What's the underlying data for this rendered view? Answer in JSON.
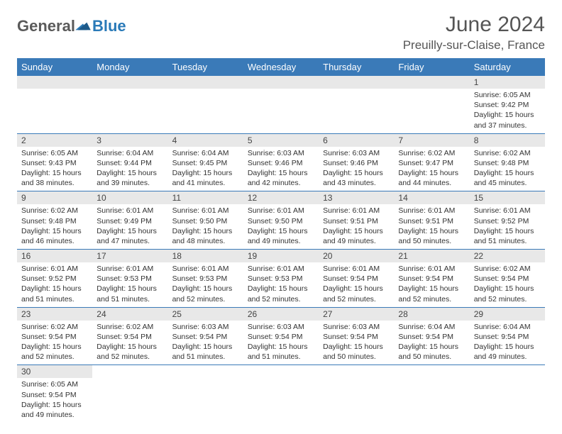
{
  "logo": {
    "part1": "General",
    "part2": "Blue"
  },
  "title": "June 2024",
  "location": "Preuilly-sur-Claise, France",
  "colors": {
    "header_bg": "#3a7ab8",
    "header_text": "#ffffff",
    "daynum_bg": "#e8e8e8",
    "border": "#3a7ab8",
    "logo_gray": "#5a5a5a",
    "logo_blue": "#2a7ab8"
  },
  "weekdays": [
    "Sunday",
    "Monday",
    "Tuesday",
    "Wednesday",
    "Thursday",
    "Friday",
    "Saturday"
  ],
  "weeks": [
    [
      null,
      null,
      null,
      null,
      null,
      null,
      {
        "d": "1",
        "sr": "Sunrise: 6:05 AM",
        "ss": "Sunset: 9:42 PM",
        "dl1": "Daylight: 15 hours",
        "dl2": "and 37 minutes."
      }
    ],
    [
      {
        "d": "2",
        "sr": "Sunrise: 6:05 AM",
        "ss": "Sunset: 9:43 PM",
        "dl1": "Daylight: 15 hours",
        "dl2": "and 38 minutes."
      },
      {
        "d": "3",
        "sr": "Sunrise: 6:04 AM",
        "ss": "Sunset: 9:44 PM",
        "dl1": "Daylight: 15 hours",
        "dl2": "and 39 minutes."
      },
      {
        "d": "4",
        "sr": "Sunrise: 6:04 AM",
        "ss": "Sunset: 9:45 PM",
        "dl1": "Daylight: 15 hours",
        "dl2": "and 41 minutes."
      },
      {
        "d": "5",
        "sr": "Sunrise: 6:03 AM",
        "ss": "Sunset: 9:46 PM",
        "dl1": "Daylight: 15 hours",
        "dl2": "and 42 minutes."
      },
      {
        "d": "6",
        "sr": "Sunrise: 6:03 AM",
        "ss": "Sunset: 9:46 PM",
        "dl1": "Daylight: 15 hours",
        "dl2": "and 43 minutes."
      },
      {
        "d": "7",
        "sr": "Sunrise: 6:02 AM",
        "ss": "Sunset: 9:47 PM",
        "dl1": "Daylight: 15 hours",
        "dl2": "and 44 minutes."
      },
      {
        "d": "8",
        "sr": "Sunrise: 6:02 AM",
        "ss": "Sunset: 9:48 PM",
        "dl1": "Daylight: 15 hours",
        "dl2": "and 45 minutes."
      }
    ],
    [
      {
        "d": "9",
        "sr": "Sunrise: 6:02 AM",
        "ss": "Sunset: 9:48 PM",
        "dl1": "Daylight: 15 hours",
        "dl2": "and 46 minutes."
      },
      {
        "d": "10",
        "sr": "Sunrise: 6:01 AM",
        "ss": "Sunset: 9:49 PM",
        "dl1": "Daylight: 15 hours",
        "dl2": "and 47 minutes."
      },
      {
        "d": "11",
        "sr": "Sunrise: 6:01 AM",
        "ss": "Sunset: 9:50 PM",
        "dl1": "Daylight: 15 hours",
        "dl2": "and 48 minutes."
      },
      {
        "d": "12",
        "sr": "Sunrise: 6:01 AM",
        "ss": "Sunset: 9:50 PM",
        "dl1": "Daylight: 15 hours",
        "dl2": "and 49 minutes."
      },
      {
        "d": "13",
        "sr": "Sunrise: 6:01 AM",
        "ss": "Sunset: 9:51 PM",
        "dl1": "Daylight: 15 hours",
        "dl2": "and 49 minutes."
      },
      {
        "d": "14",
        "sr": "Sunrise: 6:01 AM",
        "ss": "Sunset: 9:51 PM",
        "dl1": "Daylight: 15 hours",
        "dl2": "and 50 minutes."
      },
      {
        "d": "15",
        "sr": "Sunrise: 6:01 AM",
        "ss": "Sunset: 9:52 PM",
        "dl1": "Daylight: 15 hours",
        "dl2": "and 51 minutes."
      }
    ],
    [
      {
        "d": "16",
        "sr": "Sunrise: 6:01 AM",
        "ss": "Sunset: 9:52 PM",
        "dl1": "Daylight: 15 hours",
        "dl2": "and 51 minutes."
      },
      {
        "d": "17",
        "sr": "Sunrise: 6:01 AM",
        "ss": "Sunset: 9:53 PM",
        "dl1": "Daylight: 15 hours",
        "dl2": "and 51 minutes."
      },
      {
        "d": "18",
        "sr": "Sunrise: 6:01 AM",
        "ss": "Sunset: 9:53 PM",
        "dl1": "Daylight: 15 hours",
        "dl2": "and 52 minutes."
      },
      {
        "d": "19",
        "sr": "Sunrise: 6:01 AM",
        "ss": "Sunset: 9:53 PM",
        "dl1": "Daylight: 15 hours",
        "dl2": "and 52 minutes."
      },
      {
        "d": "20",
        "sr": "Sunrise: 6:01 AM",
        "ss": "Sunset: 9:54 PM",
        "dl1": "Daylight: 15 hours",
        "dl2": "and 52 minutes."
      },
      {
        "d": "21",
        "sr": "Sunrise: 6:01 AM",
        "ss": "Sunset: 9:54 PM",
        "dl1": "Daylight: 15 hours",
        "dl2": "and 52 minutes."
      },
      {
        "d": "22",
        "sr": "Sunrise: 6:02 AM",
        "ss": "Sunset: 9:54 PM",
        "dl1": "Daylight: 15 hours",
        "dl2": "and 52 minutes."
      }
    ],
    [
      {
        "d": "23",
        "sr": "Sunrise: 6:02 AM",
        "ss": "Sunset: 9:54 PM",
        "dl1": "Daylight: 15 hours",
        "dl2": "and 52 minutes."
      },
      {
        "d": "24",
        "sr": "Sunrise: 6:02 AM",
        "ss": "Sunset: 9:54 PM",
        "dl1": "Daylight: 15 hours",
        "dl2": "and 52 minutes."
      },
      {
        "d": "25",
        "sr": "Sunrise: 6:03 AM",
        "ss": "Sunset: 9:54 PM",
        "dl1": "Daylight: 15 hours",
        "dl2": "and 51 minutes."
      },
      {
        "d": "26",
        "sr": "Sunrise: 6:03 AM",
        "ss": "Sunset: 9:54 PM",
        "dl1": "Daylight: 15 hours",
        "dl2": "and 51 minutes."
      },
      {
        "d": "27",
        "sr": "Sunrise: 6:03 AM",
        "ss": "Sunset: 9:54 PM",
        "dl1": "Daylight: 15 hours",
        "dl2": "and 50 minutes."
      },
      {
        "d": "28",
        "sr": "Sunrise: 6:04 AM",
        "ss": "Sunset: 9:54 PM",
        "dl1": "Daylight: 15 hours",
        "dl2": "and 50 minutes."
      },
      {
        "d": "29",
        "sr": "Sunrise: 6:04 AM",
        "ss": "Sunset: 9:54 PM",
        "dl1": "Daylight: 15 hours",
        "dl2": "and 49 minutes."
      }
    ],
    [
      {
        "d": "30",
        "sr": "Sunrise: 6:05 AM",
        "ss": "Sunset: 9:54 PM",
        "dl1": "Daylight: 15 hours",
        "dl2": "and 49 minutes."
      },
      null,
      null,
      null,
      null,
      null,
      null
    ]
  ]
}
